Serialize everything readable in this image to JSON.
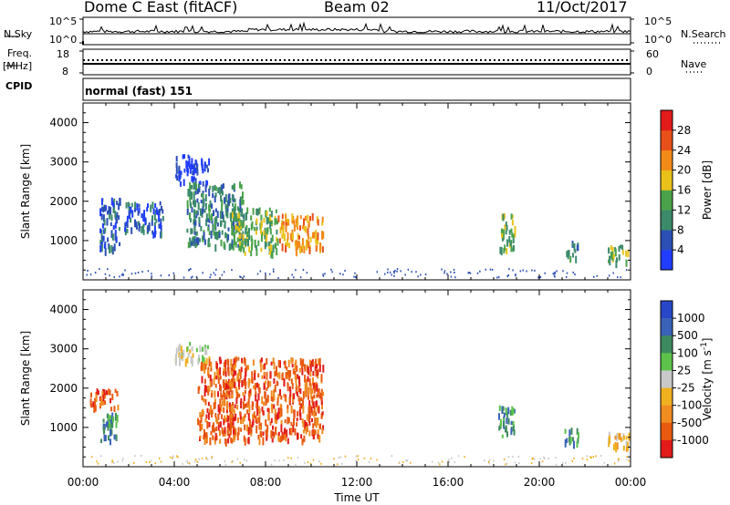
{
  "header": {
    "station": "Dome C East (fitACF)",
    "beam": "Beam 02",
    "date": "11/Oct/2017"
  },
  "top_panels": {
    "nsky_label": "N.Sky",
    "nsky_tick_top": "10^5",
    "nsky_tick_bottom": "10^0",
    "nsearch_label": "N.Search",
    "nsearch_tick_top": "10^5",
    "nsearch_tick_bottom": "10^0",
    "freq_label": "Freq.",
    "freq_unit": "[MHz]",
    "freq_tick_top": "18",
    "freq_tick_bottom": "8",
    "nave_label": "Nave",
    "nave_tick_top": "60",
    "nave_tick_bottom": "0",
    "cpid_label": "CPID",
    "cpid_value": "normal (fast) 151"
  },
  "colors": {
    "power_scale": [
      "#1f3cff",
      "#2b4fb5",
      "#3b8a6a",
      "#4aa34a",
      "#e8c21a",
      "#f28a1a",
      "#e8501a",
      "#e21a1a"
    ],
    "velocity_scale": [
      "#2847c8",
      "#3a62b8",
      "#3e8a60",
      "#5cc24a",
      "#c8c8c8",
      "#f0b020",
      "#f08c20",
      "#e85a10",
      "#e21a1a"
    ]
  },
  "chart_data": [
    {
      "type": "heatmap",
      "title": "Power",
      "ylabel": "Slant Range [km]",
      "xlabel": "Time UT",
      "xlim": [
        "00:00",
        "24:00"
      ],
      "ylim": [
        0,
        4500
      ],
      "x_ticks": [
        "00:00",
        "04:00",
        "08:00",
        "12:00",
        "16:00",
        "20:00",
        "00:00"
      ],
      "y_ticks": [
        "1000",
        "2000",
        "3000",
        "4000"
      ],
      "colorbar": {
        "label": "Power [dB]",
        "ticks": [
          "4",
          "8",
          "12",
          "16",
          "20",
          "24",
          "28"
        ]
      },
      "regions": [
        {
          "t0": 0.7,
          "t1": 1.6,
          "r0": 800,
          "r1": 2100,
          "level": 10
        },
        {
          "t0": 1.8,
          "t1": 3.5,
          "r0": 1200,
          "r1": 2000,
          "level": 9
        },
        {
          "t0": 4.0,
          "t1": 5.5,
          "r0": 2500,
          "r1": 3200,
          "level": 4
        },
        {
          "t0": 4.5,
          "t1": 7.0,
          "r0": 900,
          "r1": 2500,
          "level": 14
        },
        {
          "t0": 6.5,
          "t1": 8.5,
          "r0": 700,
          "r1": 1900,
          "level": 18
        },
        {
          "t0": 8.5,
          "t1": 10.5,
          "r0": 800,
          "r1": 1700,
          "level": 24
        },
        {
          "t0": 18.2,
          "t1": 18.9,
          "r0": 800,
          "r1": 1700,
          "level": 16
        },
        {
          "t0": 21.1,
          "t1": 21.7,
          "r0": 600,
          "r1": 1000,
          "level": 14
        },
        {
          "t0": 23.0,
          "t1": 24.0,
          "r0": 500,
          "r1": 900,
          "level": 18
        }
      ]
    },
    {
      "type": "heatmap",
      "title": "Velocity",
      "ylabel": "Slant Range [km]",
      "xlabel": "Time UT",
      "xlim": [
        "00:00",
        "24:00"
      ],
      "ylim": [
        0,
        4500
      ],
      "x_ticks": [
        "00:00",
        "04:00",
        "08:00",
        "12:00",
        "16:00",
        "20:00",
        "00:00"
      ],
      "y_ticks": [
        "1000",
        "2000",
        "3000",
        "4000"
      ],
      "colorbar": {
        "label": "Velocity [m s^-1]",
        "ticks": [
          "1000",
          "500",
          "100",
          "25",
          "-25",
          "-100",
          "-500",
          "-1000"
        ]
      },
      "regions": [
        {
          "t0": 0.3,
          "t1": 1.5,
          "r0": 1500,
          "r1": 2000,
          "level": -300
        },
        {
          "t0": 0.7,
          "t1": 1.5,
          "r0": 700,
          "r1": 1400,
          "level": 100
        },
        {
          "t0": 4.0,
          "t1": 5.5,
          "r0": 2700,
          "r1": 3200,
          "level": 0
        },
        {
          "t0": 5.0,
          "t1": 10.5,
          "r0": 700,
          "r1": 2800,
          "level": -400
        },
        {
          "t0": 18.2,
          "t1": 18.9,
          "r0": 800,
          "r1": 1600,
          "level": 150
        },
        {
          "t0": 21.1,
          "t1": 21.7,
          "r0": 600,
          "r1": 1000,
          "level": 200
        },
        {
          "t0": 23.0,
          "t1": 24.0,
          "r0": 500,
          "r1": 900,
          "level": -50
        }
      ]
    }
  ]
}
